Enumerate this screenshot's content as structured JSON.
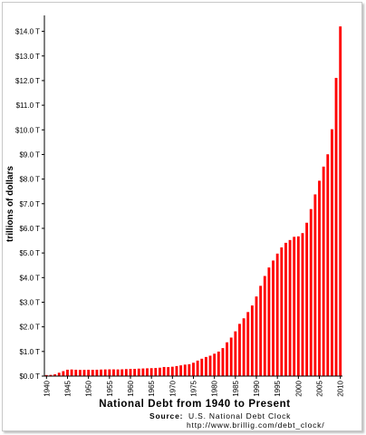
{
  "chart_data": {
    "type": "bar",
    "title": "National Debt from 1940 to Present",
    "ylabel": "trillions of dollars",
    "xlabel": "",
    "ylim": [
      0,
      14.5
    ],
    "y_ticks": [
      0,
      1,
      2,
      3,
      4,
      5,
      6,
      7,
      8,
      9,
      10,
      11,
      12,
      13,
      14
    ],
    "y_tick_labels": [
      "$0.0 T",
      "$1.0 T",
      "$2.0 T",
      "$3.0 T",
      "$4.0 T",
      "$5.0 T",
      "$6.0 T",
      "$7.0 T",
      "$8.0 T",
      "$9.0 T",
      "$10.0 T",
      "$11.0 T",
      "$12.0 T",
      "$13.0 T",
      "$14.0 T"
    ],
    "x_tick_labels": [
      "1940",
      "1945",
      "1950",
      "1955",
      "1960",
      "1965",
      "1970",
      "1975",
      "1980",
      "1985",
      "1990",
      "1995",
      "2000",
      "2005",
      "2010"
    ],
    "x_tick_years": [
      1940,
      1945,
      1950,
      1955,
      1960,
      1965,
      1970,
      1975,
      1980,
      1985,
      1990,
      1995,
      2000,
      2005,
      2010
    ],
    "grid": false,
    "bar_color": "#ff0000",
    "categories": [
      1940,
      1941,
      1942,
      1943,
      1944,
      1945,
      1946,
      1947,
      1948,
      1949,
      1950,
      1951,
      1952,
      1953,
      1954,
      1955,
      1956,
      1957,
      1958,
      1959,
      1960,
      1961,
      1962,
      1963,
      1964,
      1965,
      1966,
      1967,
      1968,
      1969,
      1970,
      1971,
      1972,
      1973,
      1974,
      1975,
      1976,
      1977,
      1978,
      1979,
      1980,
      1981,
      1982,
      1983,
      1984,
      1985,
      1986,
      1987,
      1988,
      1989,
      1990,
      1991,
      1992,
      1993,
      1994,
      1995,
      1996,
      1997,
      1998,
      1999,
      2000,
      2001,
      2002,
      2003,
      2004,
      2005,
      2006,
      2007,
      2008,
      2009,
      2010
    ],
    "values": [
      0.043,
      0.049,
      0.072,
      0.137,
      0.201,
      0.259,
      0.269,
      0.258,
      0.252,
      0.253,
      0.257,
      0.255,
      0.259,
      0.266,
      0.271,
      0.274,
      0.273,
      0.271,
      0.276,
      0.285,
      0.291,
      0.293,
      0.303,
      0.31,
      0.316,
      0.322,
      0.328,
      0.341,
      0.37,
      0.366,
      0.381,
      0.408,
      0.436,
      0.466,
      0.484,
      0.542,
      0.629,
      0.706,
      0.777,
      0.829,
      0.909,
      0.995,
      1.137,
      1.372,
      1.565,
      1.817,
      2.121,
      2.346,
      2.601,
      2.868,
      3.233,
      3.665,
      4.065,
      4.411,
      4.693,
      4.974,
      5.225,
      5.413,
      5.526,
      5.656,
      5.674,
      5.807,
      6.228,
      6.783,
      7.379,
      7.933,
      8.507,
      9.008,
      10.025,
      12.11,
      14.2
    ]
  },
  "source": {
    "label": "Source:",
    "name": "U.S. National Debt Clock",
    "url": "http://www.brillig.com/debt_clock/"
  }
}
